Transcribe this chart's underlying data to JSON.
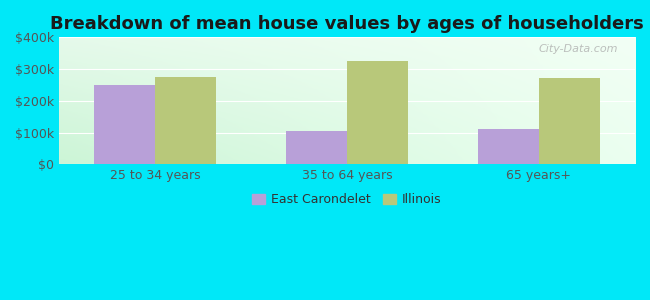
{
  "title": "Breakdown of mean house values by ages of householders",
  "categories": [
    "25 to 34 years",
    "35 to 64 years",
    "65 years+"
  ],
  "east_carondelet": [
    250000,
    105000,
    110000
  ],
  "illinois": [
    275000,
    325000,
    272000
  ],
  "bar_color_ec": "#b8a0d8",
  "bar_color_il": "#b8c87a",
  "background_outer": "#00e8f8",
  "ylim": [
    0,
    400000
  ],
  "yticks": [
    0,
    100000,
    200000,
    300000,
    400000
  ],
  "ytick_labels": [
    "$0",
    "$100k",
    "$200k",
    "$300k",
    "$400k"
  ],
  "legend_labels": [
    "East Carondelet",
    "Illinois"
  ],
  "title_fontsize": 13,
  "tick_fontsize": 9,
  "legend_fontsize": 9,
  "bar_width": 0.32,
  "watermark": "City-Data.com"
}
